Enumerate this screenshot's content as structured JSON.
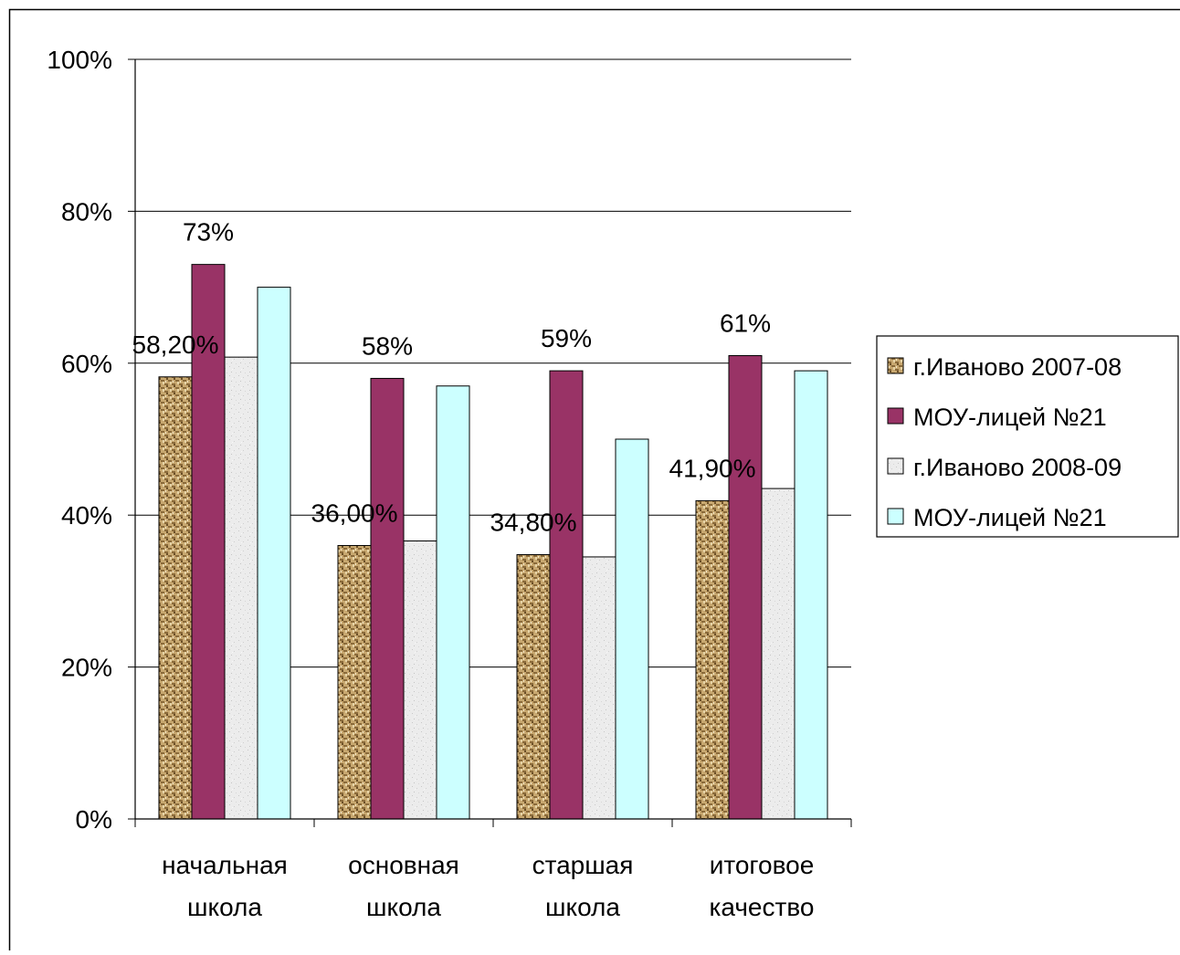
{
  "chart_data": {
    "type": "bar",
    "categories": [
      [
        "начальная",
        "школа"
      ],
      [
        "основная",
        "школа"
      ],
      [
        "старшая",
        "школа"
      ],
      [
        "итоговое",
        "качество"
      ]
    ],
    "series": [
      {
        "name": "г.Иваново 2007-08",
        "values": [
          58.2,
          36.0,
          34.8,
          41.9
        ],
        "labels": [
          "58,20%",
          "36,00%",
          "34,80%",
          "41,90%"
        ],
        "pattern": "woven-tan"
      },
      {
        "name": "МОУ-лицей №21",
        "values": [
          73,
          58,
          59,
          61
        ],
        "labels": [
          "73%",
          "58%",
          "59%",
          "61%"
        ],
        "color": "#993366"
      },
      {
        "name": "г.Иваново 2008-09",
        "values": [
          60.8,
          36.6,
          34.5,
          43.5
        ],
        "labels": [
          "",
          "",
          "",
          ""
        ],
        "pattern": "speckled-light-gray"
      },
      {
        "name": "МОУ-лицей №21",
        "values": [
          70,
          57,
          50,
          59
        ],
        "labels": [
          "",
          "",
          "",
          ""
        ],
        "color": "#CCFFFF"
      }
    ],
    "y_ticks": [
      "0%",
      "20%",
      "40%",
      "60%",
      "80%",
      "100%"
    ],
    "ylim": [
      0,
      100
    ],
    "grid": true,
    "legend_position": "right"
  }
}
